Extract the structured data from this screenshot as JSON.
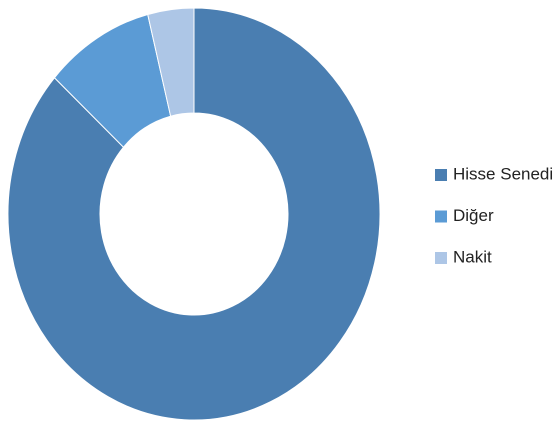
{
  "chart_data": {
    "type": "donut",
    "categories": [
      "Hisse Senedi",
      "Diğer",
      "Nakit"
    ],
    "values": [
      86.5,
      9.5,
      4
    ],
    "colors": [
      "#4a7eb1",
      "#5b9bd5",
      "#adc6e6"
    ],
    "legend": "right"
  }
}
